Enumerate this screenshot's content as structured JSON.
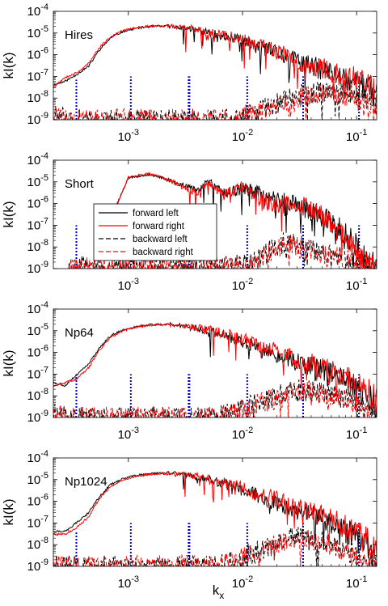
{
  "figure": {
    "xlabel": "k",
    "xlabel_sub": "x"
  },
  "colors": {
    "forward_left": "#000000",
    "forward_right": "#ff0000",
    "backward_left": "#000000",
    "backward_right": "#ff0000",
    "markers": "#0000cc"
  },
  "chart_data": [
    {
      "type": "line",
      "panel_label": "Hires",
      "ylabel": "kI(k)",
      "xscale": "log",
      "yscale": "log",
      "xlim": [
        0.00022,
        0.15
      ],
      "ylim": [
        1e-09,
        0.0001
      ],
      "xticks": [
        "10^-3",
        "10^-2",
        "10^-1"
      ],
      "yticks": [
        "10^-9",
        "10^-8",
        "10^-7",
        "10^-6",
        "10^-5",
        "10^-4"
      ],
      "marker_lines": [
        {
          "x": 0.00035,
          "top": 7e-08
        },
        {
          "x": 0.00105,
          "top": 1e-07
        },
        {
          "x": 0.0034,
          "top": 1e-07
        },
        {
          "x": 0.011,
          "top": 1e-07
        },
        {
          "x": 0.034,
          "top": 1e-07
        },
        {
          "x": 0.105,
          "top": 1e-07
        }
      ],
      "series": [
        {
          "name": "forward left",
          "style": "solid",
          "x": [
            0.00022,
            0.00028,
            0.00035,
            0.00045,
            0.00055,
            0.0007,
            0.0009,
            0.0012,
            0.0016,
            0.0022,
            0.003,
            0.004,
            0.006,
            0.009,
            0.013,
            0.02,
            0.03,
            0.05,
            0.08,
            0.12,
            0.15
          ],
          "y": [
            4e-08,
            6e-08,
            1.2e-07,
            3e-07,
            1.5e-06,
            6e-06,
            1.2e-05,
            1.7e-05,
            2e-05,
            2.1e-05,
            1.8e-05,
            1.4e-05,
            8e-06,
            5e-06,
            2.5e-06,
            1.2e-06,
            5e-07,
            2e-07,
            8e-08,
            3e-08,
            1.5e-08
          ]
        },
        {
          "name": "forward right",
          "style": "solid",
          "x": [
            0.00022,
            0.00028,
            0.00035,
            0.00045,
            0.00055,
            0.0007,
            0.0009,
            0.0012,
            0.0016,
            0.0022,
            0.003,
            0.004,
            0.006,
            0.009,
            0.013,
            0.02,
            0.03,
            0.05,
            0.08,
            0.12,
            0.15
          ],
          "y": [
            3e-08,
            9e-08,
            1.5e-07,
            4e-07,
            2e-06,
            7e-06,
            1.3e-05,
            1.8e-05,
            2.1e-05,
            2.1e-05,
            1.9e-05,
            1.5e-05,
            9e-06,
            6e-06,
            3e-06,
            1.5e-06,
            6e-07,
            2.5e-07,
            1e-07,
            5e-08,
            3e-08
          ]
        },
        {
          "name": "backward left",
          "style": "dashed",
          "x": [
            0.00022,
            0.0003,
            0.006,
            0.01,
            0.015,
            0.02,
            0.03,
            0.05,
            0.08,
            0.12,
            0.15
          ],
          "y": [
            1.5e-09,
            1e-09,
            1e-09,
            1.5e-09,
            3e-09,
            6e-09,
            1.2e-08,
            2e-08,
            1.5e-08,
            8e-09,
            5e-09
          ]
        },
        {
          "name": "backward right",
          "style": "dashed",
          "x": [
            0.00022,
            0.0003,
            0.006,
            0.01,
            0.015,
            0.02,
            0.03,
            0.05,
            0.08,
            0.12,
            0.15
          ],
          "y": [
            1.6e-09,
            1e-09,
            1e-09,
            1.3e-09,
            2.5e-09,
            5e-09,
            1e-08,
            1.8e-08,
            1.3e-08,
            7e-09,
            4e-09
          ]
        }
      ]
    },
    {
      "type": "line",
      "panel_label": "Short",
      "ylabel": "kI(k)",
      "xscale": "log",
      "yscale": "log",
      "xlim": [
        0.00022,
        0.15
      ],
      "ylim": [
        1e-09,
        0.0001
      ],
      "xticks": [
        "10^-3",
        "10^-2",
        "10^-1"
      ],
      "yticks": [
        "10^-9",
        "10^-8",
        "10^-7",
        "10^-6",
        "10^-5",
        "10^-4"
      ],
      "legend": {
        "placement": "center-left",
        "entries": [
          "forward left",
          "forward right",
          "backward left",
          "backward right"
        ]
      },
      "marker_lines": [
        {
          "x": 0.00035,
          "top": 1e-07
        },
        {
          "x": 0.00105,
          "top": 5e-09
        },
        {
          "x": 0.0034,
          "top": 4e-09
        },
        {
          "x": 0.011,
          "top": 1e-07
        },
        {
          "x": 0.034,
          "top": 1e-07
        },
        {
          "x": 0.105,
          "top": 1e-07
        }
      ],
      "series": [
        {
          "name": "forward left",
          "style": "solid",
          "x": [
            0.0007,
            0.001,
            0.0015,
            0.002,
            0.003,
            0.004,
            0.005,
            0.007,
            0.01,
            0.014,
            0.02,
            0.03,
            0.045,
            0.065,
            0.09,
            0.12,
            0.15
          ],
          "y": [
            2e-07,
            1.5e-05,
            2.2e-05,
            1.5e-05,
            7e-06,
            4e-06,
            1e-05,
            3e-06,
            5e-06,
            3e-06,
            1.5e-06,
            1e-06,
            3e-07,
            1e-07,
            2e-08,
            3e-09,
            1e-09
          ]
        },
        {
          "name": "forward right",
          "style": "solid",
          "x": [
            0.0007,
            0.001,
            0.0015,
            0.002,
            0.003,
            0.004,
            0.005,
            0.007,
            0.01,
            0.014,
            0.02,
            0.03,
            0.045,
            0.065,
            0.09,
            0.12,
            0.15
          ],
          "y": [
            2e-07,
            1.6e-05,
            2.4e-05,
            1.6e-05,
            6e-06,
            3e-06,
            8e-06,
            2.5e-06,
            6e-06,
            2e-06,
            8e-07,
            1e-06,
            4e-07,
            8e-08,
            1e-08,
            2e-09,
            1e-09
          ]
        },
        {
          "name": "backward left",
          "style": "dashed",
          "x": [
            0.0003,
            0.0004,
            0.0006,
            0.0009,
            0.012,
            0.017,
            0.025,
            0.035,
            0.05,
            0.07,
            0.1,
            0.14
          ],
          "y": [
            1e-09,
            1.2e-09,
            1e-09,
            1e-09,
            1.5e-09,
            8e-09,
            1.8e-08,
            1e-08,
            5e-09,
            4e-09,
            2e-09,
            1e-09
          ]
        },
        {
          "name": "backward right",
          "style": "dashed",
          "x": [
            0.0003,
            0.0004,
            0.0006,
            0.0009,
            0.012,
            0.017,
            0.025,
            0.035,
            0.05,
            0.07,
            0.1,
            0.14
          ],
          "y": [
            1e-09,
            1.3e-09,
            1.1e-09,
            1e-09,
            1.2e-09,
            6e-09,
            1.2e-08,
            8e-09,
            4e-09,
            3e-09,
            2e-09,
            1e-09
          ]
        }
      ]
    },
    {
      "type": "line",
      "panel_label": "Np64",
      "ylabel": "kI(k)",
      "xscale": "log",
      "yscale": "log",
      "xlim": [
        0.00022,
        0.15
      ],
      "ylim": [
        1e-09,
        0.0001
      ],
      "xticks": [
        "10^-3",
        "10^-2",
        "10^-1"
      ],
      "yticks": [
        "10^-9",
        "10^-8",
        "10^-7",
        "10^-6",
        "10^-5",
        "10^-4"
      ],
      "marker_lines": [
        {
          "x": 0.00035,
          "top": 1e-07
        },
        {
          "x": 0.00105,
          "top": 1e-07
        },
        {
          "x": 0.0034,
          "top": 1e-07
        },
        {
          "x": 0.011,
          "top": 1e-07
        },
        {
          "x": 0.034,
          "top": 1e-07
        },
        {
          "x": 0.105,
          "top": 1e-07
        }
      ],
      "series": [
        {
          "name": "forward left",
          "style": "solid",
          "x": [
            0.00022,
            0.00028,
            0.00035,
            0.00045,
            0.00055,
            0.0007,
            0.0009,
            0.0012,
            0.0016,
            0.0022,
            0.003,
            0.004,
            0.006,
            0.009,
            0.013,
            0.02,
            0.03,
            0.05,
            0.08,
            0.12,
            0.15
          ],
          "y": [
            4e-08,
            3e-08,
            9e-08,
            3e-07,
            1.5e-06,
            6e-06,
            1.1e-05,
            1.6e-05,
            1.9e-05,
            2e-05,
            1.8e-05,
            1.3e-05,
            8e-06,
            4e-06,
            2e-06,
            8e-07,
            4e-07,
            1.5e-07,
            5e-08,
            1e-08,
            4e-09
          ]
        },
        {
          "name": "forward right",
          "style": "solid",
          "x": [
            0.00022,
            0.00028,
            0.00035,
            0.00045,
            0.00055,
            0.0007,
            0.0009,
            0.0012,
            0.0016,
            0.0022,
            0.003,
            0.004,
            0.006,
            0.009,
            0.013,
            0.02,
            0.03,
            0.05,
            0.08,
            0.12,
            0.15
          ],
          "y": [
            3e-08,
            4e-08,
            6e-08,
            2e-07,
            1.2e-06,
            5e-06,
            1e-05,
            1.5e-05,
            1.8e-05,
            1.9e-05,
            1.7e-05,
            1.4e-05,
            9e-06,
            5e-06,
            2.5e-06,
            1.2e-06,
            5e-07,
            2e-07,
            7e-08,
            2e-08,
            6e-09
          ]
        },
        {
          "name": "backward left",
          "style": "dashed",
          "x": [
            0.00022,
            0.0003,
            0.006,
            0.01,
            0.015,
            0.02,
            0.03,
            0.05,
            0.08,
            0.12,
            0.15
          ],
          "y": [
            1.5e-09,
            1e-09,
            1e-09,
            3e-09,
            6e-09,
            1e-08,
            2e-08,
            1.5e-08,
            8e-09,
            3e-09,
            1.5e-09
          ]
        },
        {
          "name": "backward right",
          "style": "dashed",
          "x": [
            0.00022,
            0.0003,
            0.006,
            0.01,
            0.015,
            0.02,
            0.03,
            0.05,
            0.08,
            0.12,
            0.15
          ],
          "y": [
            1.6e-09,
            1e-09,
            1.1e-09,
            2.5e-09,
            5e-09,
            9e-09,
            1.8e-08,
            1.3e-08,
            7e-09,
            2.5e-09,
            1.3e-09
          ]
        }
      ]
    },
    {
      "type": "line",
      "panel_label": "Np1024",
      "ylabel": "kI(k)",
      "xscale": "log",
      "yscale": "log",
      "xlim": [
        0.00022,
        0.15
      ],
      "ylim": [
        1e-09,
        0.0001
      ],
      "xticks": [
        "10^-3",
        "10^-2",
        "10^-1"
      ],
      "yticks": [
        "10^-9",
        "10^-8",
        "10^-7",
        "10^-6",
        "10^-5",
        "10^-4"
      ],
      "marker_lines": [
        {
          "x": 0.00035,
          "top": 4e-08
        },
        {
          "x": 0.00105,
          "top": 1e-07
        },
        {
          "x": 0.0034,
          "top": 1e-07
        },
        {
          "x": 0.011,
          "top": 1e-07
        },
        {
          "x": 0.034,
          "top": 1e-07
        },
        {
          "x": 0.105,
          "top": 1e-07
        }
      ],
      "series": [
        {
          "name": "forward left",
          "style": "solid",
          "x": [
            0.00022,
            0.00028,
            0.00035,
            0.00045,
            0.00055,
            0.0007,
            0.0009,
            0.0012,
            0.0016,
            0.0022,
            0.003,
            0.004,
            0.006,
            0.009,
            0.013,
            0.02,
            0.03,
            0.05,
            0.08,
            0.12,
            0.15
          ],
          "y": [
            4e-08,
            4e-08,
            1e-07,
            3e-07,
            1.5e-06,
            6e-06,
            1.1e-05,
            1.6e-05,
            1.9e-05,
            2e-05,
            1.8e-05,
            1.3e-05,
            8e-06,
            4e-06,
            2e-06,
            8e-07,
            4e-07,
            1.5e-07,
            5e-08,
            1e-08,
            4e-09
          ]
        },
        {
          "name": "forward right",
          "style": "solid",
          "x": [
            0.00022,
            0.00028,
            0.00035,
            0.00045,
            0.00055,
            0.0007,
            0.0009,
            0.0012,
            0.0016,
            0.0022,
            0.003,
            0.004,
            0.006,
            0.009,
            0.013,
            0.02,
            0.03,
            0.05,
            0.08,
            0.12,
            0.15
          ],
          "y": [
            3e-08,
            3e-08,
            6e-08,
            2e-07,
            1.2e-06,
            5e-06,
            1e-05,
            1.5e-05,
            1.8e-05,
            1.9e-05,
            1.7e-05,
            1.4e-05,
            9e-06,
            5e-06,
            2.5e-06,
            1.2e-06,
            5e-07,
            2e-07,
            7e-08,
            2e-08,
            6e-09
          ]
        },
        {
          "name": "backward left",
          "style": "dashed",
          "x": [
            0.00022,
            0.0003,
            0.006,
            0.01,
            0.015,
            0.02,
            0.03,
            0.05,
            0.08,
            0.12,
            0.15
          ],
          "y": [
            1.5e-09,
            1e-09,
            1e-09,
            3e-09,
            6e-09,
            1.2e-08,
            2.5e-08,
            1.5e-08,
            6e-09,
            2e-09,
            1.2e-09
          ]
        },
        {
          "name": "backward right",
          "style": "dashed",
          "x": [
            0.00022,
            0.0003,
            0.006,
            0.01,
            0.015,
            0.02,
            0.03,
            0.05,
            0.08,
            0.12,
            0.15
          ],
          "y": [
            1.6e-09,
            1e-09,
            1.1e-09,
            2.5e-09,
            5e-09,
            1e-08,
            2e-08,
            1.3e-08,
            5e-09,
            1.8e-09,
            1.1e-09
          ]
        }
      ]
    }
  ]
}
